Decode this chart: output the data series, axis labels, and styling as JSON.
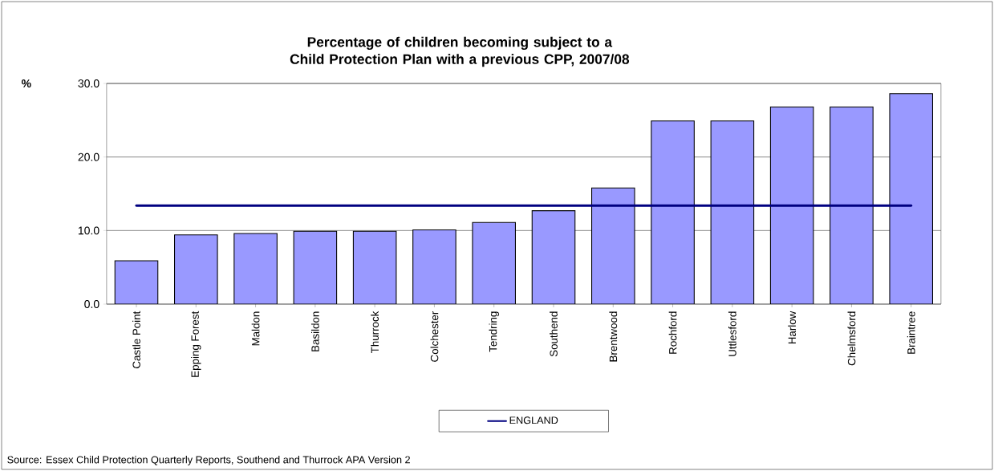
{
  "chart_data": {
    "type": "bar",
    "title": "Percentage of children becoming subject to a Child Protection Plan with a previous CPP,  2007/08",
    "ylabel": "%",
    "categories": [
      "Castle Point",
      "Epping Forest",
      "Maldon",
      "Basildon",
      "Thurrock",
      "Colchester",
      "Tendring",
      "Southend",
      "Brentwood",
      "Rochford",
      "Uttlesford",
      "Harlow",
      "Chelmsford",
      "Braintree"
    ],
    "series": [
      {
        "color": "#9999ff",
        "values": [
          5.9,
          9.4,
          9.6,
          9.9,
          9.9,
          10.1,
          11.1,
          12.7,
          15.8,
          24.9,
          24.9,
          26.8,
          26.8,
          28.6
        ]
      },
      {
        "type": "line",
        "name": "ENGLAND",
        "color": "#000080",
        "values": [
          13.4,
          13.4,
          13.4,
          13.4,
          13.4,
          13.4,
          13.4,
          13.4,
          13.4,
          13.4,
          13.4,
          13.4,
          13.4,
          13.4
        ]
      }
    ],
    "ylim": [
      0,
      30
    ],
    "yticks": [
      {
        "value": 0,
        "label": "0.0"
      },
      {
        "value": 10,
        "label": "10.0"
      },
      {
        "value": 20,
        "label": "20.0"
      },
      {
        "value": 30,
        "label": "30.0"
      }
    ],
    "grid": "y",
    "legend": "bottom",
    "annotations": [
      "Source: Essex Child Protection Quarterly Reports, Southend and Thurrock APA Version 2"
    ]
  }
}
